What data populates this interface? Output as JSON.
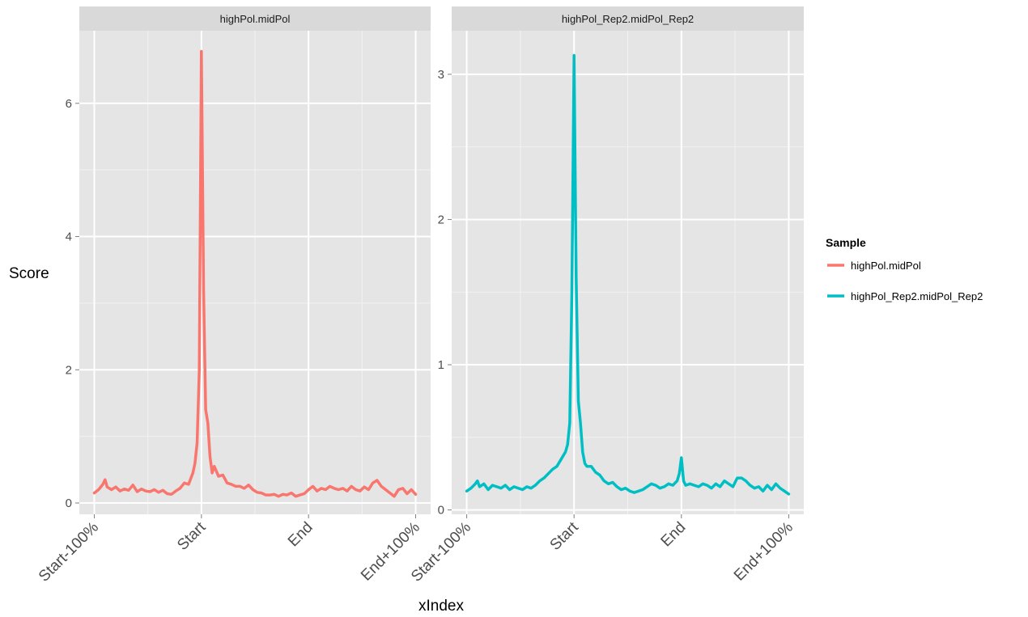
{
  "chart_data": {
    "type": "line",
    "xlabel": "xIndex",
    "ylabel": "Score",
    "x_tick_labels": [
      "Start-100%",
      "Start",
      "End",
      "End+100%"
    ],
    "x_tick_positions": [
      0,
      50,
      100,
      150
    ],
    "xlim": [
      -7,
      157
    ],
    "legend": {
      "title": "Sample",
      "placement": "right",
      "entries": [
        {
          "label": "highPol.midPol",
          "color": "#F8766D"
        },
        {
          "label": "highPol_Rep2.midPol_Rep2",
          "color": "#00BFC4"
        }
      ]
    },
    "facets": [
      {
        "strip": "highPol.midPol",
        "color": "#F8766D",
        "ylim": [
          -0.17,
          7.09
        ],
        "y_ticks": [
          0,
          2,
          4,
          6
        ],
        "y_tick_labels": [
          "0",
          "2",
          "4",
          "6"
        ],
        "x": [
          0,
          2,
          4,
          5,
          6,
          8,
          10,
          12,
          14,
          16,
          18,
          20,
          22,
          24,
          26,
          28,
          30,
          32,
          34,
          36,
          38,
          40,
          42,
          44,
          46,
          47,
          48,
          49,
          50,
          51,
          52,
          53,
          54,
          55,
          56,
          58,
          60,
          62,
          64,
          66,
          68,
          70,
          72,
          74,
          76,
          78,
          80,
          82,
          84,
          86,
          88,
          90,
          92,
          94,
          96,
          98,
          100,
          102,
          104,
          106,
          108,
          110,
          112,
          114,
          116,
          118,
          120,
          122,
          124,
          126,
          128,
          130,
          132,
          134,
          136,
          138,
          140,
          142,
          144,
          146,
          148,
          150
        ],
        "y": [
          0.15,
          0.2,
          0.28,
          0.35,
          0.24,
          0.2,
          0.24,
          0.18,
          0.21,
          0.19,
          0.27,
          0.17,
          0.21,
          0.18,
          0.17,
          0.2,
          0.16,
          0.19,
          0.14,
          0.13,
          0.18,
          0.22,
          0.3,
          0.28,
          0.45,
          0.6,
          0.9,
          2.0,
          6.78,
          3.2,
          1.4,
          1.2,
          0.7,
          0.45,
          0.55,
          0.4,
          0.42,
          0.3,
          0.28,
          0.25,
          0.25,
          0.22,
          0.27,
          0.2,
          0.16,
          0.15,
          0.12,
          0.12,
          0.13,
          0.1,
          0.13,
          0.12,
          0.15,
          0.1,
          0.12,
          0.14,
          0.2,
          0.25,
          0.18,
          0.22,
          0.2,
          0.25,
          0.22,
          0.2,
          0.22,
          0.18,
          0.25,
          0.2,
          0.18,
          0.24,
          0.2,
          0.3,
          0.34,
          0.25,
          0.2,
          0.15,
          0.1,
          0.2,
          0.22,
          0.14,
          0.2,
          0.13
        ]
      },
      {
        "strip": "highPol_Rep2.midPol_Rep2",
        "color": "#00BFC4",
        "ylim": [
          -0.03,
          3.3
        ],
        "y_ticks": [
          0,
          1,
          2,
          3
        ],
        "y_tick_labels": [
          "0",
          "1",
          "2",
          "3"
        ],
        "x": [
          0,
          2,
          4,
          5,
          6,
          8,
          10,
          12,
          14,
          16,
          18,
          20,
          22,
          24,
          26,
          28,
          30,
          32,
          34,
          36,
          38,
          40,
          42,
          44,
          46,
          47,
          48,
          49,
          50,
          51,
          52,
          53,
          54,
          55,
          56,
          58,
          60,
          62,
          64,
          66,
          68,
          70,
          72,
          74,
          76,
          78,
          80,
          82,
          84,
          86,
          88,
          90,
          92,
          94,
          96,
          98,
          99,
          100,
          101,
          102,
          104,
          106,
          108,
          110,
          112,
          114,
          116,
          118,
          120,
          122,
          124,
          126,
          128,
          130,
          132,
          134,
          136,
          138,
          140,
          142,
          144,
          146,
          148,
          150
        ],
        "y": [
          0.13,
          0.15,
          0.18,
          0.2,
          0.16,
          0.18,
          0.14,
          0.17,
          0.16,
          0.15,
          0.17,
          0.14,
          0.16,
          0.15,
          0.14,
          0.16,
          0.15,
          0.17,
          0.2,
          0.22,
          0.25,
          0.28,
          0.3,
          0.35,
          0.4,
          0.45,
          0.6,
          1.5,
          3.13,
          1.6,
          0.75,
          0.6,
          0.4,
          0.32,
          0.3,
          0.3,
          0.26,
          0.24,
          0.2,
          0.18,
          0.19,
          0.16,
          0.14,
          0.15,
          0.13,
          0.12,
          0.13,
          0.14,
          0.16,
          0.18,
          0.17,
          0.15,
          0.16,
          0.18,
          0.17,
          0.2,
          0.25,
          0.36,
          0.2,
          0.17,
          0.18,
          0.17,
          0.16,
          0.18,
          0.17,
          0.15,
          0.18,
          0.16,
          0.2,
          0.18,
          0.16,
          0.22,
          0.22,
          0.2,
          0.17,
          0.15,
          0.16,
          0.13,
          0.17,
          0.14,
          0.18,
          0.15,
          0.13,
          0.11
        ]
      }
    ]
  }
}
